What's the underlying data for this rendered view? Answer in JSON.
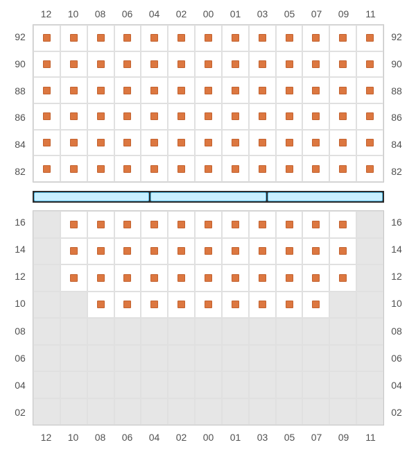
{
  "colors": {
    "seat_fill": "#dc7740",
    "seat_border": "#c2612e",
    "grid_border": "#c8c8c8",
    "cell_border": "#e0e0e0",
    "gray_cell": "#e6e6e6",
    "label_text": "#505050",
    "divider_bg": "#2b2b2b",
    "divider_segment_fill": "#c8efff",
    "divider_segment_border": "#57bce8",
    "background": "#ffffff"
  },
  "layout": {
    "cols": 13,
    "top_rows": 6,
    "bottom_rows": 8
  },
  "column_labels": [
    "12",
    "10",
    "08",
    "06",
    "04",
    "02",
    "00",
    "01",
    "03",
    "05",
    "07",
    "09",
    "11"
  ],
  "top": {
    "row_labels": [
      "92",
      "90",
      "88",
      "86",
      "84",
      "82"
    ],
    "seats": [
      [
        1,
        1,
        1,
        1,
        1,
        1,
        1,
        1,
        1,
        1,
        1,
        1,
        1
      ],
      [
        1,
        1,
        1,
        1,
        1,
        1,
        1,
        1,
        1,
        1,
        1,
        1,
        1
      ],
      [
        1,
        1,
        1,
        1,
        1,
        1,
        1,
        1,
        1,
        1,
        1,
        1,
        1
      ],
      [
        1,
        1,
        1,
        1,
        1,
        1,
        1,
        1,
        1,
        1,
        1,
        1,
        1
      ],
      [
        1,
        1,
        1,
        1,
        1,
        1,
        1,
        1,
        1,
        1,
        1,
        1,
        1
      ],
      [
        1,
        1,
        1,
        1,
        1,
        1,
        1,
        1,
        1,
        1,
        1,
        1,
        1
      ]
    ],
    "gray": [
      [
        0,
        0,
        0,
        0,
        0,
        0,
        0,
        0,
        0,
        0,
        0,
        0,
        0
      ],
      [
        0,
        0,
        0,
        0,
        0,
        0,
        0,
        0,
        0,
        0,
        0,
        0,
        0
      ],
      [
        0,
        0,
        0,
        0,
        0,
        0,
        0,
        0,
        0,
        0,
        0,
        0,
        0
      ],
      [
        0,
        0,
        0,
        0,
        0,
        0,
        0,
        0,
        0,
        0,
        0,
        0,
        0
      ],
      [
        0,
        0,
        0,
        0,
        0,
        0,
        0,
        0,
        0,
        0,
        0,
        0,
        0
      ],
      [
        0,
        0,
        0,
        0,
        0,
        0,
        0,
        0,
        0,
        0,
        0,
        0,
        0
      ]
    ]
  },
  "bottom": {
    "row_labels": [
      "16",
      "14",
      "12",
      "10",
      "08",
      "06",
      "04",
      "02"
    ],
    "seats": [
      [
        0,
        1,
        1,
        1,
        1,
        1,
        1,
        1,
        1,
        1,
        1,
        1,
        0
      ],
      [
        0,
        1,
        1,
        1,
        1,
        1,
        1,
        1,
        1,
        1,
        1,
        1,
        0
      ],
      [
        0,
        1,
        1,
        1,
        1,
        1,
        1,
        1,
        1,
        1,
        1,
        1,
        0
      ],
      [
        0,
        0,
        1,
        1,
        1,
        1,
        1,
        1,
        1,
        1,
        1,
        0,
        0
      ],
      [
        0,
        0,
        0,
        0,
        0,
        0,
        0,
        0,
        0,
        0,
        0,
        0,
        0
      ],
      [
        0,
        0,
        0,
        0,
        0,
        0,
        0,
        0,
        0,
        0,
        0,
        0,
        0
      ],
      [
        0,
        0,
        0,
        0,
        0,
        0,
        0,
        0,
        0,
        0,
        0,
        0,
        0
      ],
      [
        0,
        0,
        0,
        0,
        0,
        0,
        0,
        0,
        0,
        0,
        0,
        0,
        0
      ]
    ],
    "gray": [
      [
        1,
        0,
        0,
        0,
        0,
        0,
        0,
        0,
        0,
        0,
        0,
        0,
        1
      ],
      [
        1,
        0,
        0,
        0,
        0,
        0,
        0,
        0,
        0,
        0,
        0,
        0,
        1
      ],
      [
        1,
        0,
        0,
        0,
        0,
        0,
        0,
        0,
        0,
        0,
        0,
        0,
        1
      ],
      [
        1,
        1,
        0,
        0,
        0,
        0,
        0,
        0,
        0,
        0,
        0,
        1,
        1
      ],
      [
        1,
        1,
        1,
        1,
        1,
        1,
        1,
        1,
        1,
        1,
        1,
        1,
        1
      ],
      [
        1,
        1,
        1,
        1,
        1,
        1,
        1,
        1,
        1,
        1,
        1,
        1,
        1
      ],
      [
        1,
        1,
        1,
        1,
        1,
        1,
        1,
        1,
        1,
        1,
        1,
        1,
        1
      ],
      [
        1,
        1,
        1,
        1,
        1,
        1,
        1,
        1,
        1,
        1,
        1,
        1,
        1
      ]
    ]
  },
  "divider_segments": 3
}
